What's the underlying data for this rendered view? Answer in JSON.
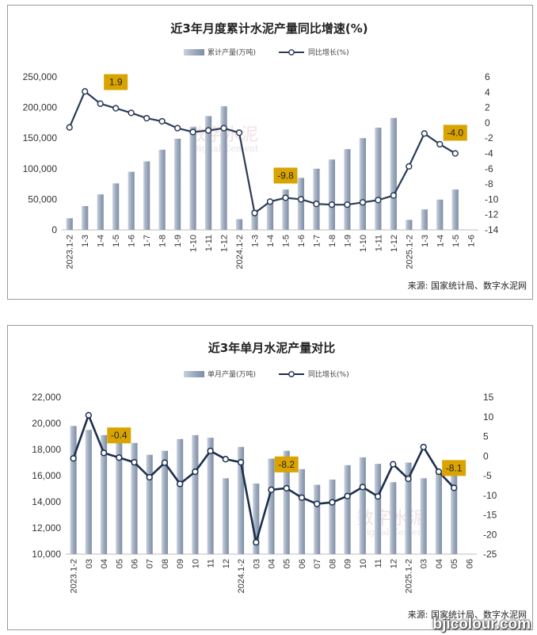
{
  "chart_data": [
    {
      "type": "bar+line",
      "title": "近3年月度累计水泥产量同比增速(%)",
      "legend": {
        "bar": "累计产量(万吨)",
        "line": "同比增长(%)",
        "placement": "top-center"
      },
      "categories": [
        "2023.1-2",
        "1-3",
        "1-4",
        "1-5",
        "1-6",
        "1-7",
        "1-8",
        "1-9",
        "1-10",
        "1-11",
        "1-12",
        "2024.1-2",
        "1-3",
        "1-4",
        "1-5",
        "1-6",
        "1-7",
        "1-8",
        "1-9",
        "1-10",
        "1-11",
        "1-12",
        "2025.1-2",
        "1-3",
        "1-4",
        "1-5",
        "1-6"
      ],
      "series": [
        {
          "name": "累计产量(万吨)",
          "axis": "left",
          "values": [
            19000,
            39000,
            58000,
            76000,
            95000,
            112000,
            131000,
            149000,
            168000,
            186000,
            202000,
            17500,
            33000,
            48000,
            66000,
            85000,
            100000,
            115000,
            132000,
            150000,
            167000,
            183000,
            16500,
            33500,
            49500,
            66000,
            null
          ]
        },
        {
          "name": "同比增长(%)",
          "axis": "right",
          "values": [
            -0.6,
            4.1,
            2.5,
            1.9,
            1.3,
            0.6,
            0.2,
            -0.7,
            -1.2,
            -1.0,
            -0.7,
            -1.3,
            -11.8,
            -10.3,
            -9.8,
            -10.0,
            -10.6,
            -10.7,
            -10.7,
            -10.4,
            -10.1,
            -9.5,
            -5.7,
            -1.4,
            -2.8,
            -4.0,
            null
          ]
        }
      ],
      "ylim_left": [
        0,
        250000
      ],
      "yticks_left": [
        "0",
        "50,000",
        "100,000",
        "150,000",
        "200,000",
        "250,000"
      ],
      "ylim_right": [
        -14,
        6
      ],
      "yticks_right": [
        "-14",
        "-12",
        "-10",
        "-8",
        "-6",
        "-4",
        "-2",
        "0",
        "2",
        "4",
        "6"
      ],
      "annotations": [
        {
          "index": 3,
          "text": "1.9"
        },
        {
          "index": 14,
          "text": "-9.8"
        },
        {
          "index": 25,
          "text": "-4.0"
        }
      ],
      "source": "来源: 国家统计局、数字水泥网",
      "watermark": "数字水泥 Digital Cement",
      "colors": {
        "bar": "#9aa7bb",
        "line": "#2b3c57",
        "marker_fill": "#ffffff",
        "annotation_bg": "#d9a400"
      }
    },
    {
      "type": "bar+line",
      "title": "近3年单月水泥产量对比",
      "legend": {
        "bar": "单月产量(万吨)",
        "line": "同比增长(%)",
        "placement": "top-center"
      },
      "categories": [
        "2023.1-2",
        "03",
        "04",
        "05",
        "06",
        "07",
        "08",
        "09",
        "10",
        "11",
        "12",
        "2024.1-2",
        "03",
        "04",
        "05",
        "06",
        "07",
        "08",
        "09",
        "10",
        "11",
        "12",
        "2025.1-2",
        "03",
        "04",
        "05",
        "06"
      ],
      "series": [
        {
          "name": "单月产量(万吨)",
          "axis": "left",
          "values": [
            19800,
            19500,
            19100,
            19600,
            18500,
            17600,
            17900,
            18800,
            19100,
            18900,
            15800,
            18200,
            15400,
            17300,
            17900,
            16500,
            15300,
            15700,
            16800,
            17400,
            16900,
            15500,
            17000,
            15800,
            16200,
            16000,
            null
          ]
        },
        {
          "name": "同比增长(%)",
          "axis": "right",
          "values": [
            -0.6,
            10.4,
            0.8,
            -0.4,
            -1.6,
            -5.4,
            -1.7,
            -7.1,
            -4.0,
            1.3,
            -0.8,
            -1.6,
            -22.0,
            -8.6,
            -8.2,
            -10.6,
            -12.2,
            -11.8,
            -10.2,
            -7.9,
            -10.3,
            -2.1,
            -5.8,
            2.3,
            -4.0,
            -8.1,
            null
          ]
        }
      ],
      "ylim_left": [
        10000,
        22000
      ],
      "yticks_left": [
        "10,000",
        "12,000",
        "14,000",
        "16,000",
        "18,000",
        "20,000",
        "22,000"
      ],
      "ylim_right": [
        -25,
        15
      ],
      "yticks_right": [
        "-25",
        "-20",
        "-15",
        "-10",
        "-5",
        "0",
        "5",
        "10",
        "15"
      ],
      "annotations": [
        {
          "index": 3,
          "text": "-0.4"
        },
        {
          "index": 14,
          "text": "-8.2"
        },
        {
          "index": 25,
          "text": "-8.1"
        }
      ],
      "source": "来源: 国家统计局、数字水泥网",
      "watermark": "数字水泥 Digital Cement",
      "colors": {
        "bar": "#9aa7bb",
        "line": "#1d2f4d",
        "marker_fill": "#ffffff",
        "annotation_bg": "#d9a400"
      }
    }
  ],
  "site_watermark": "bjicolour.com"
}
